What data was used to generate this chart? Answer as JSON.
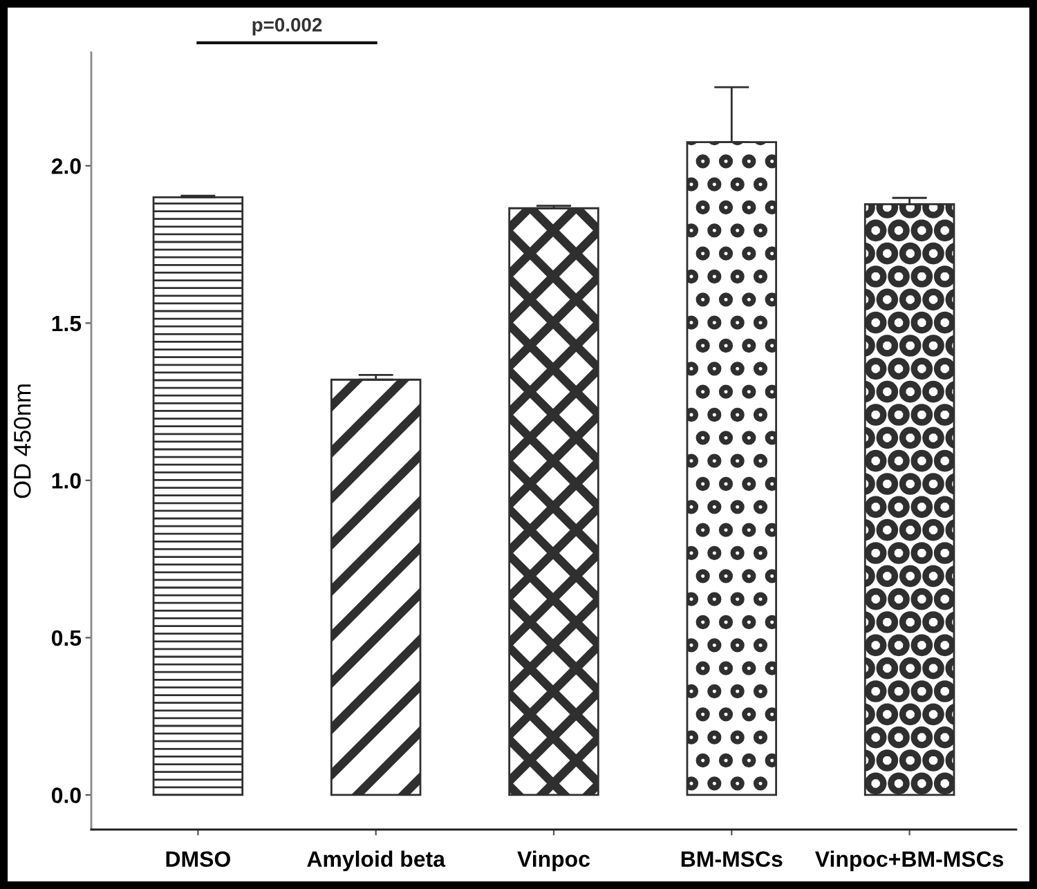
{
  "chart_data": {
    "type": "bar",
    "ylabel": "OD 450nm",
    "categories": [
      "DMSO",
      "Amyloid beta",
      "Vinpoc",
      "BM-MSCs",
      "Vinpoc+BM-MSCs"
    ],
    "values": [
      1.9,
      1.32,
      1.865,
      2.075,
      1.878
    ],
    "color": "#2f2f2f",
    "errors": [
      [
        1.9,
        1.905
      ],
      [
        1.32,
        1.335
      ],
      [
        1.865,
        1.873
      ],
      [
        2.075,
        2.25
      ],
      [
        1.878,
        1.898
      ]
    ],
    "ylim": [
      -0.11,
      2.36
    ],
    "yticks": [
      {
        "value": 0,
        "label": "0.0"
      },
      {
        "value": 0.5,
        "label": "0.5"
      },
      {
        "value": 1,
        "label": "1.0"
      },
      {
        "value": 1.5,
        "label": "1.5"
      },
      {
        "value": 2,
        "label": "2.0"
      }
    ],
    "annotations": [
      "p=0.002"
    ],
    "grid": false,
    "legend": false
  }
}
